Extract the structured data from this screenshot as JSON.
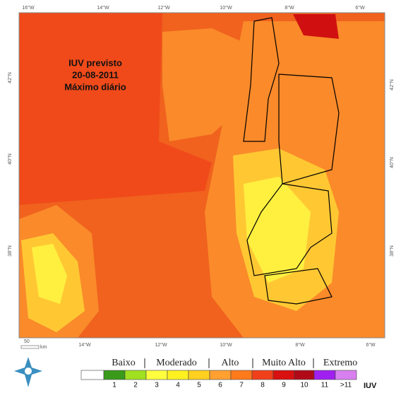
{
  "map": {
    "title_lines": [
      "IUV previsto",
      "20-08-2011",
      "Máximo diário"
    ],
    "top_lon_labels": [
      "16°W",
      "14°W",
      "12°W",
      "10°W",
      "8°W",
      "6°W"
    ],
    "bottom_lon_labels": [
      "14°W",
      "12°W",
      "10°W",
      "8°W",
      "6°W"
    ],
    "left_lat_labels": [
      "42°N",
      "40°N",
      "38°N"
    ],
    "right_lat_labels": [
      "42°N",
      "40°N",
      "38°N"
    ],
    "scale": {
      "value": "50",
      "unit": "km"
    }
  },
  "legend": {
    "groups": [
      "Baixo",
      "Moderado",
      "Alto",
      "Muito Alto",
      "Extremo"
    ],
    "classes": [
      "1",
      "2",
      "3",
      "4",
      "5",
      "6",
      "7",
      "8",
      "9",
      "10",
      "11",
      ">11"
    ],
    "unit": "IUV"
  }
}
